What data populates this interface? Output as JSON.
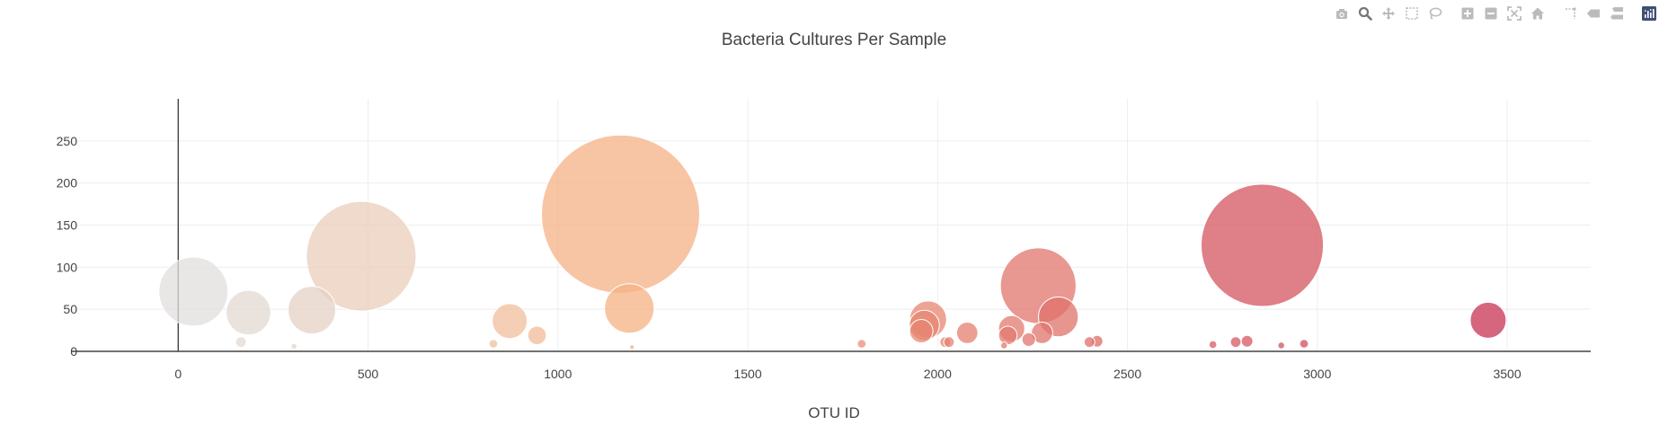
{
  "modebar": {
    "icons": [
      "camera-icon",
      "zoom-icon",
      "pan-icon",
      "box-select-icon",
      "lasso-select-icon",
      "zoom-in-icon",
      "zoom-out-icon",
      "autoscale-icon",
      "reset-axes-icon",
      "spike-lines-icon",
      "hover-closest-icon",
      "hover-compare-icon",
      "plotly-logo-icon"
    ],
    "icon_color": "#bbbbbb",
    "active_color": "#777777",
    "logo_color": "#3f4f75"
  },
  "chart_data": {
    "type": "scatter",
    "title": "Bacteria Cultures Per Sample",
    "xlabel": "OTU ID",
    "ylabel": "",
    "xlim": [
      -280,
      3720
    ],
    "ylim": [
      0,
      300
    ],
    "x_ticks": [
      0,
      500,
      1000,
      1500,
      2000,
      2500,
      3000,
      3500
    ],
    "y_ticks": [
      0,
      50,
      100,
      150,
      200,
      250
    ],
    "grid": true,
    "colorscale_from": "#e0e0e0",
    "colorscale_to": "#c83252",
    "color_domain": [
      0,
      3460
    ],
    "x": [
      40,
      185,
      352,
      482,
      1165,
      1188,
      873,
      945,
      1975,
      1965,
      1957,
      2078,
      2195,
      2185,
      2265,
      2318,
      2275,
      2240,
      2020,
      2030,
      1800,
      2400,
      2420,
      2855,
      3450,
      2815,
      2785,
      2725,
      2965,
      2905,
      165,
      305,
      830,
      1195,
      2175
    ],
    "y": [
      71,
      46,
      49,
      113,
      163,
      51,
      36,
      19,
      38,
      31,
      24,
      22,
      27,
      19,
      78,
      41,
      22,
      14,
      11,
      11,
      9,
      11,
      12,
      126,
      37,
      12,
      11,
      8,
      9,
      7,
      11,
      6,
      9,
      5,
      7
    ],
    "sizes": [
      71,
      46,
      49,
      113,
      163,
      51,
      36,
      19,
      38,
      31,
      24,
      22,
      27,
      19,
      78,
      41,
      22,
      14,
      11,
      11,
      9,
      11,
      12,
      126,
      37,
      12,
      11,
      8,
      9,
      7,
      11,
      6,
      9,
      5,
      7
    ]
  }
}
